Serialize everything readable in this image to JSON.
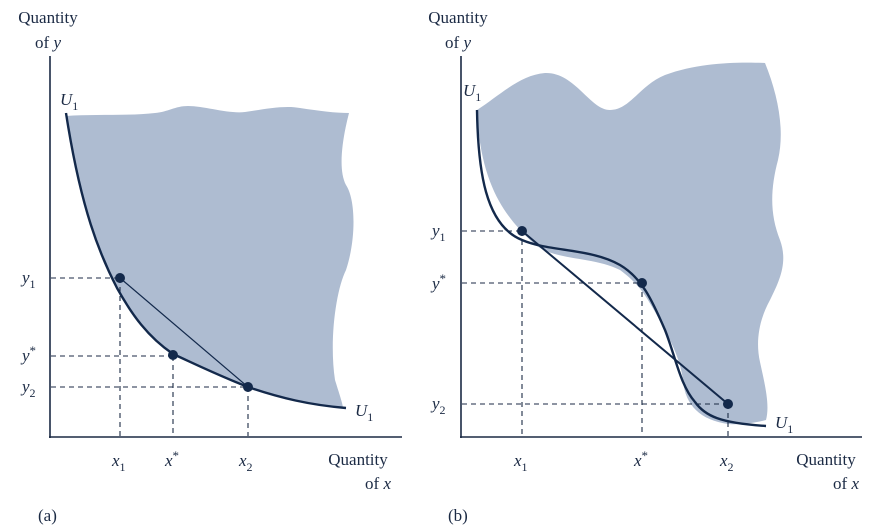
{
  "colors": {
    "region_fill": "#aebcd1",
    "curve": "#13294b",
    "text": "#1b2a44"
  },
  "panel_a": {
    "tag": "(a)",
    "y_axis_label": {
      "line1": "Quantity",
      "line2_prefix": "of ",
      "line2_var": "y"
    },
    "x_axis_label": {
      "line1": "Quantity",
      "line2_prefix": "of ",
      "line2_var": "x"
    },
    "curve_top": {
      "base": "U",
      "sub": "1"
    },
    "curve_end": {
      "base": "U",
      "sub": "1"
    },
    "y_ticks": [
      {
        "id": "y1",
        "base": "y",
        "sub": "1"
      },
      {
        "id": "ystar",
        "base": "y",
        "sup": "*"
      },
      {
        "id": "y2",
        "base": "y",
        "sub": "2"
      }
    ],
    "x_ticks": [
      {
        "id": "x1",
        "base": "x",
        "sub": "1"
      },
      {
        "id": "xstar",
        "base": "x",
        "sup": "*"
      },
      {
        "id": "x2",
        "base": "x",
        "sub": "2"
      }
    ]
  },
  "panel_b": {
    "tag": "(b)",
    "y_axis_label": {
      "line1": "Quantity",
      "line2_prefix": "of ",
      "line2_var": "y"
    },
    "x_axis_label": {
      "line1": "Quantity",
      "line2_prefix": "of ",
      "line2_var": "x"
    },
    "curve_top": {
      "base": "U",
      "sub": "1"
    },
    "curve_end": {
      "base": "U",
      "sub": "1"
    },
    "y_ticks": [
      {
        "id": "y1",
        "base": "y",
        "sub": "1"
      },
      {
        "id": "ystar",
        "base": "y",
        "sup": "*"
      },
      {
        "id": "y2",
        "base": "y",
        "sub": "2"
      }
    ],
    "x_ticks": [
      {
        "id": "x1",
        "base": "x",
        "sub": "1"
      },
      {
        "id": "xstar",
        "base": "x",
        "sup": "*"
      },
      {
        "id": "x2",
        "base": "x",
        "sub": "2"
      }
    ]
  }
}
